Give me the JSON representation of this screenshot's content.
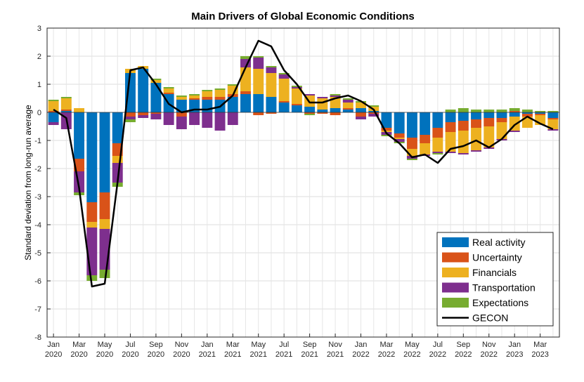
{
  "chart_data": {
    "type": "bar",
    "subtype": "stacked bar with line overlay",
    "title": "Main Drivers of Global Economic Conditions",
    "xlabel": "",
    "ylabel": "Standard deviation from long-run average",
    "ylim": [
      -8,
      3
    ],
    "yticks": [
      "3",
      "2",
      "1",
      "0",
      "-1",
      "-2",
      "-3",
      "-4",
      "-5",
      "-6",
      "-7",
      "-8"
    ],
    "grid": true,
    "legend_position": "bottom-right",
    "x_tick_labels": [
      {
        "month": "Jan",
        "year": "2020"
      },
      {
        "month": "Mar",
        "year": "2020"
      },
      {
        "month": "May",
        "year": "2020"
      },
      {
        "month": "Jul",
        "year": "2020"
      },
      {
        "month": "Sep",
        "year": "2020"
      },
      {
        "month": "Nov",
        "year": "2020"
      },
      {
        "month": "Jan",
        "year": "2021"
      },
      {
        "month": "Mar",
        "year": "2021"
      },
      {
        "month": "May",
        "year": "2021"
      },
      {
        "month": "Jul",
        "year": "2021"
      },
      {
        "month": "Sep",
        "year": "2021"
      },
      {
        "month": "Nov",
        "year": "2021"
      },
      {
        "month": "Jan",
        "year": "2022"
      },
      {
        "month": "Mar",
        "year": "2022"
      },
      {
        "month": "May",
        "year": "2022"
      },
      {
        "month": "Jul",
        "year": "2022"
      },
      {
        "month": "Sep",
        "year": "2022"
      },
      {
        "month": "Nov",
        "year": "2022"
      },
      {
        "month": "Jan",
        "year": "2023"
      },
      {
        "month": "Mar",
        "year": "2023"
      }
    ],
    "categories": [
      "2020-01",
      "2020-02",
      "2020-03",
      "2020-04",
      "2020-05",
      "2020-06",
      "2020-07",
      "2020-08",
      "2020-09",
      "2020-10",
      "2020-11",
      "2020-12",
      "2021-01",
      "2021-02",
      "2021-03",
      "2021-04",
      "2021-05",
      "2021-06",
      "2021-07",
      "2021-08",
      "2021-09",
      "2021-10",
      "2021-11",
      "2021-12",
      "2022-01",
      "2022-02",
      "2022-03",
      "2022-04",
      "2022-05",
      "2022-06",
      "2022-07",
      "2022-08",
      "2022-09",
      "2022-10",
      "2022-11",
      "2022-12",
      "2023-01",
      "2023-02",
      "2023-03",
      "2023-04"
    ],
    "series": [
      {
        "name": "Real activity",
        "color": "#0072BD",
        "values": [
          -0.35,
          0.05,
          -1.65,
          -3.2,
          -2.85,
          -1.1,
          1.4,
          1.55,
          1.05,
          0.65,
          0.45,
          0.45,
          0.45,
          0.45,
          0.55,
          0.65,
          0.65,
          0.55,
          0.35,
          0.25,
          0.2,
          0.1,
          0.15,
          0.1,
          0.15,
          0.05,
          -0.55,
          -0.75,
          -0.9,
          -0.8,
          -0.55,
          -0.35,
          -0.3,
          -0.25,
          -0.2,
          -0.2,
          -0.15,
          -0.05,
          -0.05,
          -0.2
        ]
      },
      {
        "name": "Uncertainty",
        "color": "#D95319",
        "values": [
          0.05,
          0.05,
          -0.45,
          -0.7,
          -0.95,
          -0.45,
          -0.15,
          -0.1,
          -0.05,
          0.05,
          -0.15,
          0.05,
          0.1,
          0.1,
          0.1,
          0.1,
          -0.1,
          -0.05,
          0.05,
          0.05,
          -0.05,
          -0.05,
          -0.1,
          0.05,
          -0.15,
          -0.05,
          -0.1,
          -0.15,
          -0.4,
          -0.3,
          -0.35,
          -0.35,
          -0.35,
          -0.3,
          -0.3,
          -0.15,
          0.05,
          -0.1,
          -0.05,
          -0.05
        ]
      },
      {
        "name": "Financials",
        "color": "#EDB120",
        "values": [
          0.35,
          0.4,
          0.15,
          -0.2,
          -0.35,
          -0.25,
          0.15,
          0.1,
          0.1,
          0.15,
          0.1,
          0.1,
          0.2,
          0.25,
          0.3,
          0.85,
          0.9,
          0.85,
          0.8,
          0.55,
          0.4,
          0.4,
          0.4,
          0.2,
          0.2,
          0.15,
          -0.05,
          -0.05,
          -0.25,
          -0.4,
          -0.5,
          -0.7,
          -0.8,
          -0.8,
          -0.75,
          -0.6,
          -0.5,
          -0.4,
          -0.35,
          -0.35
        ]
      },
      {
        "name": "Transportation",
        "color": "#7E2F8E",
        "values": [
          -0.1,
          -0.6,
          -0.75,
          -1.7,
          -1.45,
          -0.7,
          -0.1,
          -0.1,
          -0.2,
          -0.45,
          -0.45,
          -0.45,
          -0.55,
          -0.65,
          -0.45,
          0.3,
          0.4,
          0.2,
          0.15,
          0.05,
          0.05,
          0.05,
          0.05,
          0.1,
          -0.1,
          -0.1,
          -0.1,
          -0.1,
          -0.1,
          -0.05,
          -0.05,
          -0.05,
          -0.05,
          -0.05,
          -0.05,
          -0.05,
          -0.05,
          0.0,
          0.0,
          -0.05
        ]
      },
      {
        "name": "Expectations",
        "color": "#77AC30",
        "values": [
          0.05,
          0.05,
          -0.1,
          -0.2,
          -0.3,
          -0.15,
          -0.1,
          0.0,
          0.05,
          0.05,
          0.05,
          0.05,
          0.05,
          0.05,
          0.05,
          0.1,
          0.05,
          0.05,
          0.05,
          0.05,
          -0.05,
          0.0,
          0.05,
          0.05,
          0.05,
          0.05,
          -0.05,
          -0.05,
          -0.05,
          0.0,
          -0.05,
          0.1,
          0.15,
          0.1,
          0.1,
          0.1,
          0.1,
          0.1,
          0.05,
          0.05
        ]
      }
    ],
    "line_series": {
      "name": "GECON",
      "color": "#000000",
      "values": [
        0.1,
        -0.2,
        -2.7,
        -6.2,
        -6.1,
        -2.5,
        1.5,
        1.6,
        1.0,
        0.3,
        0.0,
        0.1,
        0.1,
        0.2,
        0.6,
        1.6,
        2.55,
        2.35,
        1.5,
        1.0,
        0.35,
        0.35,
        0.5,
        0.6,
        0.4,
        0.1,
        -0.75,
        -1.1,
        -1.6,
        -1.5,
        -1.8,
        -1.3,
        -1.2,
        -1.0,
        -1.25,
        -0.95,
        -0.45,
        -0.15,
        -0.4,
        -0.6
      ]
    }
  }
}
